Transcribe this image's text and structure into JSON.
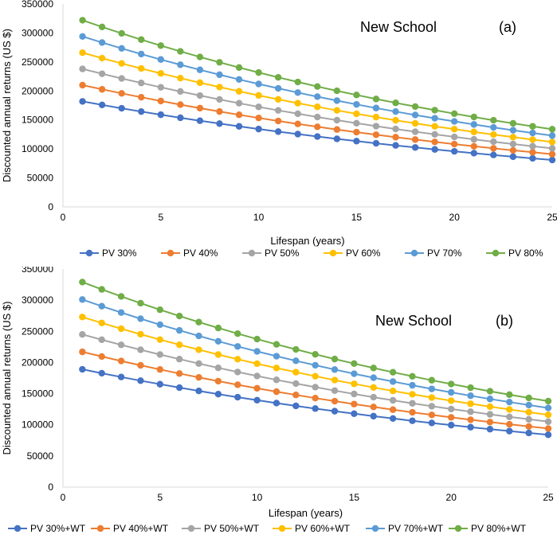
{
  "chart_data": [
    {
      "type": "line",
      "title": "New School",
      "panel_label": "(a)",
      "xlabel": "Lifespan (years)",
      "ylabel": "Discounted annual returns (US $)",
      "xlim": [
        0,
        25
      ],
      "ylim": [
        0,
        350000
      ],
      "xticks": [
        0,
        5,
        10,
        15,
        20,
        25
      ],
      "yticks": [
        0,
        50000,
        100000,
        150000,
        200000,
        250000,
        300000,
        350000
      ],
      "grid": false,
      "legend_position": "bottom",
      "x": [
        1,
        2,
        3,
        4,
        5,
        6,
        7,
        8,
        9,
        10,
        11,
        12,
        13,
        14,
        15,
        16,
        17,
        18,
        19,
        20,
        21,
        22,
        23,
        24,
        25
      ],
      "series": [
        {
          "name": "PV 30%",
          "color": "#4472c4",
          "start": 182000,
          "end": 81000
        },
        {
          "name": "PV 40%",
          "color": "#ed7d31",
          "start": 210000,
          "end": 91000
        },
        {
          "name": "PV 50%",
          "color": "#a5a5a5",
          "start": 238000,
          "end": 101000
        },
        {
          "name": "PV 60%",
          "color": "#ffc000",
          "start": 266000,
          "end": 112000
        },
        {
          "name": "PV  70%",
          "color": "#5b9bd5",
          "start": 294000,
          "end": 123000
        },
        {
          "name": "PV 80%",
          "color": "#70ad47",
          "start": 322000,
          "end": 134000
        }
      ]
    },
    {
      "type": "line",
      "title": "New School",
      "panel_label": "(b)",
      "xlabel": "Lifespan (years)",
      "ylabel": "Discounted annual returns (US $)",
      "xlim": [
        0,
        25
      ],
      "ylim": [
        0,
        350000
      ],
      "xticks": [
        0,
        5,
        10,
        15,
        20,
        25
      ],
      "yticks": [
        0,
        50000,
        100000,
        150000,
        200000,
        250000,
        300000,
        350000
      ],
      "grid": false,
      "legend_position": "bottom",
      "x": [
        1,
        2,
        3,
        4,
        5,
        6,
        7,
        8,
        9,
        10,
        11,
        12,
        13,
        14,
        15,
        16,
        17,
        18,
        19,
        20,
        21,
        22,
        23,
        24,
        25
      ],
      "series": [
        {
          "name": "PV 30%+WT",
          "color": "#4472c4",
          "start": 189000,
          "end": 84000
        },
        {
          "name": "PV 40%+WT",
          "color": "#ed7d31",
          "start": 217000,
          "end": 94000
        },
        {
          "name": "PV 50%+WT",
          "color": "#a5a5a5",
          "start": 245000,
          "end": 105000
        },
        {
          "name": "PV 60%+WT",
          "color": "#ffc000",
          "start": 273000,
          "end": 116000
        },
        {
          "name": "PV  70%+WT",
          "color": "#5b9bd5",
          "start": 301000,
          "end": 127000
        },
        {
          "name": "PV 80%+WT",
          "color": "#70ad47",
          "start": 329000,
          "end": 138000
        }
      ]
    }
  ]
}
